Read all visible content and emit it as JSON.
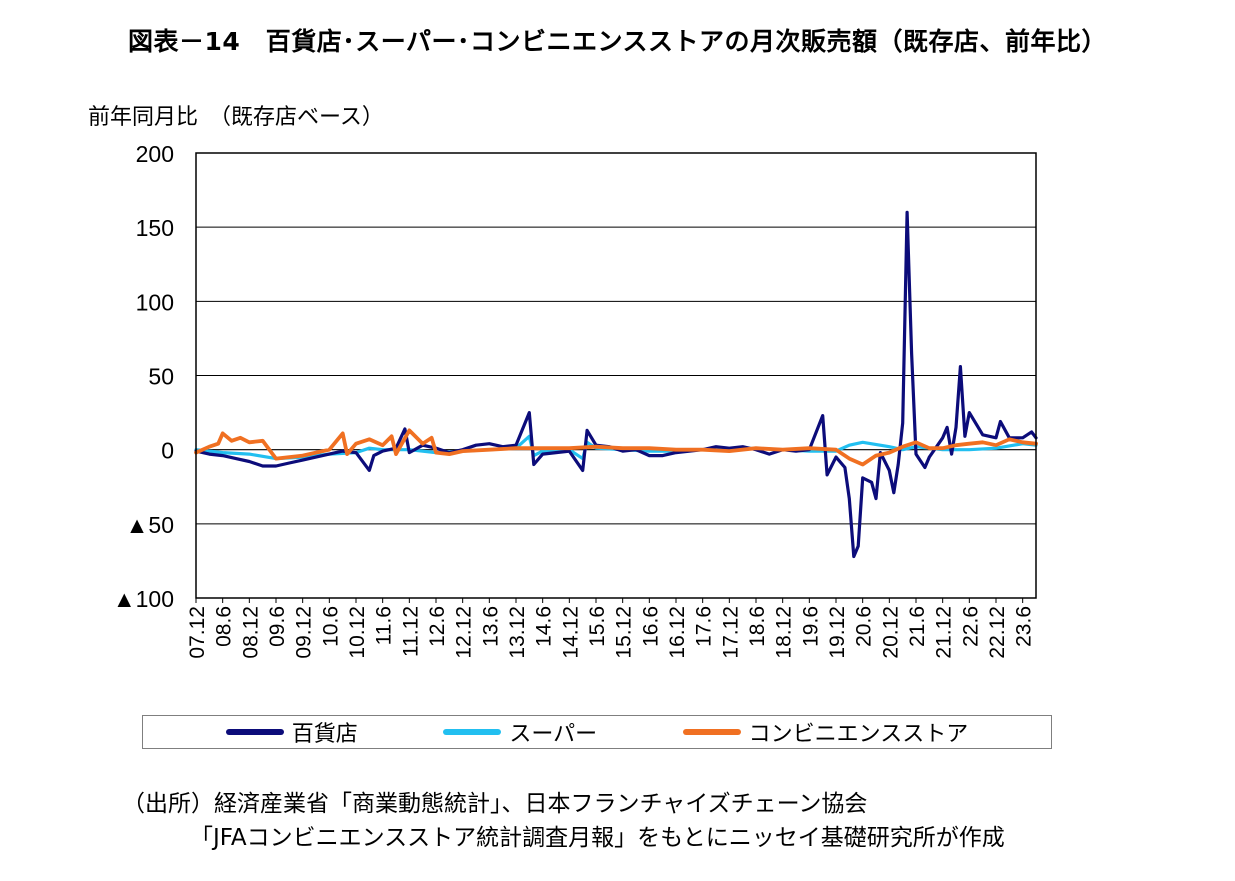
{
  "figure": {
    "title": "図表－14　百貨店･スーパー･コンビニエンスストアの月次販売額（既存店、前年比）",
    "source_line1": "（出所）経済産業省「商業動態統計」、日本フランチャイズチェーン協会",
    "source_line2": "「JFAコンビニエンスストア統計調査月報」をもとにニッセイ基礎研究所が作成"
  },
  "chart_data": {
    "type": "line",
    "title": "図表－14　百貨店･スーパー･コンビニエンスストアの月次販売額（既存店、前年比）",
    "ylabel": "前年同月比　（既存店ベース）",
    "xlabel": "",
    "ylim": [
      -100,
      200
    ],
    "yticks": [
      200,
      150,
      100,
      50,
      0,
      -50,
      -100
    ],
    "ytick_labels": [
      "200",
      "150",
      "100",
      "50",
      "0",
      "▲50",
      "▲100"
    ],
    "x_start": "2007-12",
    "x_end": "2023-09",
    "x_tick_labels": [
      "07.12",
      "08.6",
      "08.12",
      "09.6",
      "09.12",
      "10.6",
      "10.12",
      "11.6",
      "11.12",
      "12.6",
      "12.12",
      "13.6",
      "13.12",
      "14.6",
      "14.12",
      "15.6",
      "15.12",
      "16.6",
      "16.12",
      "17.6",
      "17.12",
      "18.6",
      "18.12",
      "19.6",
      "19.12",
      "20.6",
      "20.12",
      "21.6",
      "21.12",
      "22.6",
      "22.12",
      "23.6"
    ],
    "grid": true,
    "legend_position": "bottom",
    "series": [
      {
        "name": "百貨店",
        "color": "#0c0c7a",
        "keypoints": [
          [
            "2007-12",
            -1
          ],
          [
            "2008-03",
            -3
          ],
          [
            "2008-06",
            -4
          ],
          [
            "2008-09",
            -6
          ],
          [
            "2008-12",
            -8
          ],
          [
            "2009-03",
            -11
          ],
          [
            "2009-06",
            -11
          ],
          [
            "2009-09",
            -9
          ],
          [
            "2009-12",
            -7
          ],
          [
            "2010-03",
            -5
          ],
          [
            "2010-06",
            -3
          ],
          [
            "2010-09",
            -1
          ],
          [
            "2010-12",
            -2
          ],
          [
            "2011-03",
            -14
          ],
          [
            "2011-04",
            -4
          ],
          [
            "2011-06",
            -1
          ],
          [
            "2011-09",
            1
          ],
          [
            "2011-11",
            14
          ],
          [
            "2011-12",
            -2
          ],
          [
            "2012-03",
            3
          ],
          [
            "2012-06",
            1
          ],
          [
            "2012-09",
            -2
          ],
          [
            "2012-12",
            0
          ],
          [
            "2013-03",
            3
          ],
          [
            "2013-06",
            4
          ],
          [
            "2013-09",
            2
          ],
          [
            "2013-12",
            3
          ],
          [
            "2014-03",
            25
          ],
          [
            "2014-04",
            -10
          ],
          [
            "2014-06",
            -3
          ],
          [
            "2014-09",
            -2
          ],
          [
            "2014-12",
            -1
          ],
          [
            "2015-03",
            -14
          ],
          [
            "2015-04",
            13
          ],
          [
            "2015-06",
            3
          ],
          [
            "2015-09",
            2
          ],
          [
            "2015-12",
            -1
          ],
          [
            "2016-03",
            0
          ],
          [
            "2016-06",
            -4
          ],
          [
            "2016-09",
            -4
          ],
          [
            "2016-12",
            -2
          ],
          [
            "2017-03",
            -1
          ],
          [
            "2017-06",
            0
          ],
          [
            "2017-09",
            2
          ],
          [
            "2017-12",
            1
          ],
          [
            "2018-03",
            2
          ],
          [
            "2018-06",
            0
          ],
          [
            "2018-09",
            -3
          ],
          [
            "2018-12",
            0
          ],
          [
            "2019-03",
            -1
          ],
          [
            "2019-06",
            0
          ],
          [
            "2019-09",
            23
          ],
          [
            "2019-10",
            -17
          ],
          [
            "2019-12",
            -5
          ],
          [
            "2020-02",
            -12
          ],
          [
            "2020-03",
            -33
          ],
          [
            "2020-04",
            -72
          ],
          [
            "2020-05",
            -65
          ],
          [
            "2020-06",
            -19
          ],
          [
            "2020-08",
            -22
          ],
          [
            "2020-09",
            -33
          ],
          [
            "2020-10",
            -2
          ],
          [
            "2020-12",
            -14
          ],
          [
            "2021-01",
            -29
          ],
          [
            "2021-02",
            -10
          ],
          [
            "2021-03",
            18
          ],
          [
            "2021-04",
            160
          ],
          [
            "2021-05",
            65
          ],
          [
            "2021-06",
            -3
          ],
          [
            "2021-08",
            -12
          ],
          [
            "2021-09",
            -5
          ],
          [
            "2021-12",
            8
          ],
          [
            "2022-01",
            15
          ],
          [
            "2022-02",
            -3
          ],
          [
            "2022-03",
            15
          ],
          [
            "2022-04",
            56
          ],
          [
            "2022-05",
            9
          ],
          [
            "2022-06",
            25
          ],
          [
            "2022-09",
            10
          ],
          [
            "2022-12",
            8
          ],
          [
            "2023-01",
            19
          ],
          [
            "2023-03",
            8
          ],
          [
            "2023-06",
            8
          ],
          [
            "2023-08",
            12
          ],
          [
            "2023-09",
            8
          ]
        ]
      },
      {
        "name": "スーパー",
        "color": "#22bff0",
        "keypoints": [
          [
            "2007-12",
            0
          ],
          [
            "2008-06",
            -2
          ],
          [
            "2008-12",
            -3
          ],
          [
            "2009-06",
            -6
          ],
          [
            "2009-12",
            -5
          ],
          [
            "2010-06",
            -3
          ],
          [
            "2010-12",
            -2
          ],
          [
            "2011-03",
            1
          ],
          [
            "2011-06",
            0
          ],
          [
            "2011-12",
            0
          ],
          [
            "2012-06",
            -2
          ],
          [
            "2012-12",
            -1
          ],
          [
            "2013-06",
            0
          ],
          [
            "2013-12",
            1
          ],
          [
            "2014-03",
            9
          ],
          [
            "2014-04",
            -4
          ],
          [
            "2014-06",
            -1
          ],
          [
            "2014-12",
            0
          ],
          [
            "2015-03",
            -6
          ],
          [
            "2015-04",
            5
          ],
          [
            "2015-06",
            1
          ],
          [
            "2015-12",
            0
          ],
          [
            "2016-06",
            -1
          ],
          [
            "2016-12",
            -1
          ],
          [
            "2017-06",
            0
          ],
          [
            "2017-12",
            0
          ],
          [
            "2018-06",
            1
          ],
          [
            "2018-12",
            0
          ],
          [
            "2019-06",
            -1
          ],
          [
            "2019-12",
            -1
          ],
          [
            "2020-03",
            3
          ],
          [
            "2020-06",
            5
          ],
          [
            "2020-12",
            2
          ],
          [
            "2021-03",
            0
          ],
          [
            "2021-06",
            2
          ],
          [
            "2021-12",
            0
          ],
          [
            "2022-06",
            0
          ],
          [
            "2022-12",
            1
          ],
          [
            "2023-06",
            4
          ],
          [
            "2023-09",
            3
          ]
        ]
      },
      {
        "name": "コンビニエンスストア",
        "color": "#f07022",
        "keypoints": [
          [
            "2007-12",
            -2
          ],
          [
            "2008-03",
            2
          ],
          [
            "2008-05",
            4
          ],
          [
            "2008-06",
            11
          ],
          [
            "2008-08",
            6
          ],
          [
            "2008-10",
            8
          ],
          [
            "2008-12",
            5
          ],
          [
            "2009-03",
            6
          ],
          [
            "2009-06",
            -6
          ],
          [
            "2009-09",
            -5
          ],
          [
            "2009-12",
            -4
          ],
          [
            "2010-03",
            -2
          ],
          [
            "2010-06",
            0
          ],
          [
            "2010-09",
            11
          ],
          [
            "2010-10",
            -3
          ],
          [
            "2010-12",
            4
          ],
          [
            "2011-03",
            7
          ],
          [
            "2011-06",
            3
          ],
          [
            "2011-08",
            9
          ],
          [
            "2011-09",
            -3
          ],
          [
            "2011-12",
            13
          ],
          [
            "2012-03",
            4
          ],
          [
            "2012-05",
            8
          ],
          [
            "2012-06",
            -2
          ],
          [
            "2012-09",
            -3
          ],
          [
            "2012-12",
            -1
          ],
          [
            "2013-06",
            0
          ],
          [
            "2013-12",
            1
          ],
          [
            "2014-06",
            1
          ],
          [
            "2014-12",
            1
          ],
          [
            "2015-06",
            2
          ],
          [
            "2015-12",
            1
          ],
          [
            "2016-06",
            1
          ],
          [
            "2016-12",
            0
          ],
          [
            "2017-06",
            0
          ],
          [
            "2017-12",
            -1
          ],
          [
            "2018-06",
            1
          ],
          [
            "2018-12",
            0
          ],
          [
            "2019-06",
            1
          ],
          [
            "2019-12",
            0
          ],
          [
            "2020-03",
            -6
          ],
          [
            "2020-06",
            -10
          ],
          [
            "2020-09",
            -4
          ],
          [
            "2020-12",
            -2
          ],
          [
            "2021-03",
            2
          ],
          [
            "2021-06",
            5
          ],
          [
            "2021-09",
            1
          ],
          [
            "2021-12",
            1
          ],
          [
            "2022-03",
            3
          ],
          [
            "2022-06",
            4
          ],
          [
            "2022-09",
            5
          ],
          [
            "2022-12",
            3
          ],
          [
            "2023-03",
            7
          ],
          [
            "2023-06",
            5
          ],
          [
            "2023-09",
            4
          ]
        ]
      }
    ]
  }
}
